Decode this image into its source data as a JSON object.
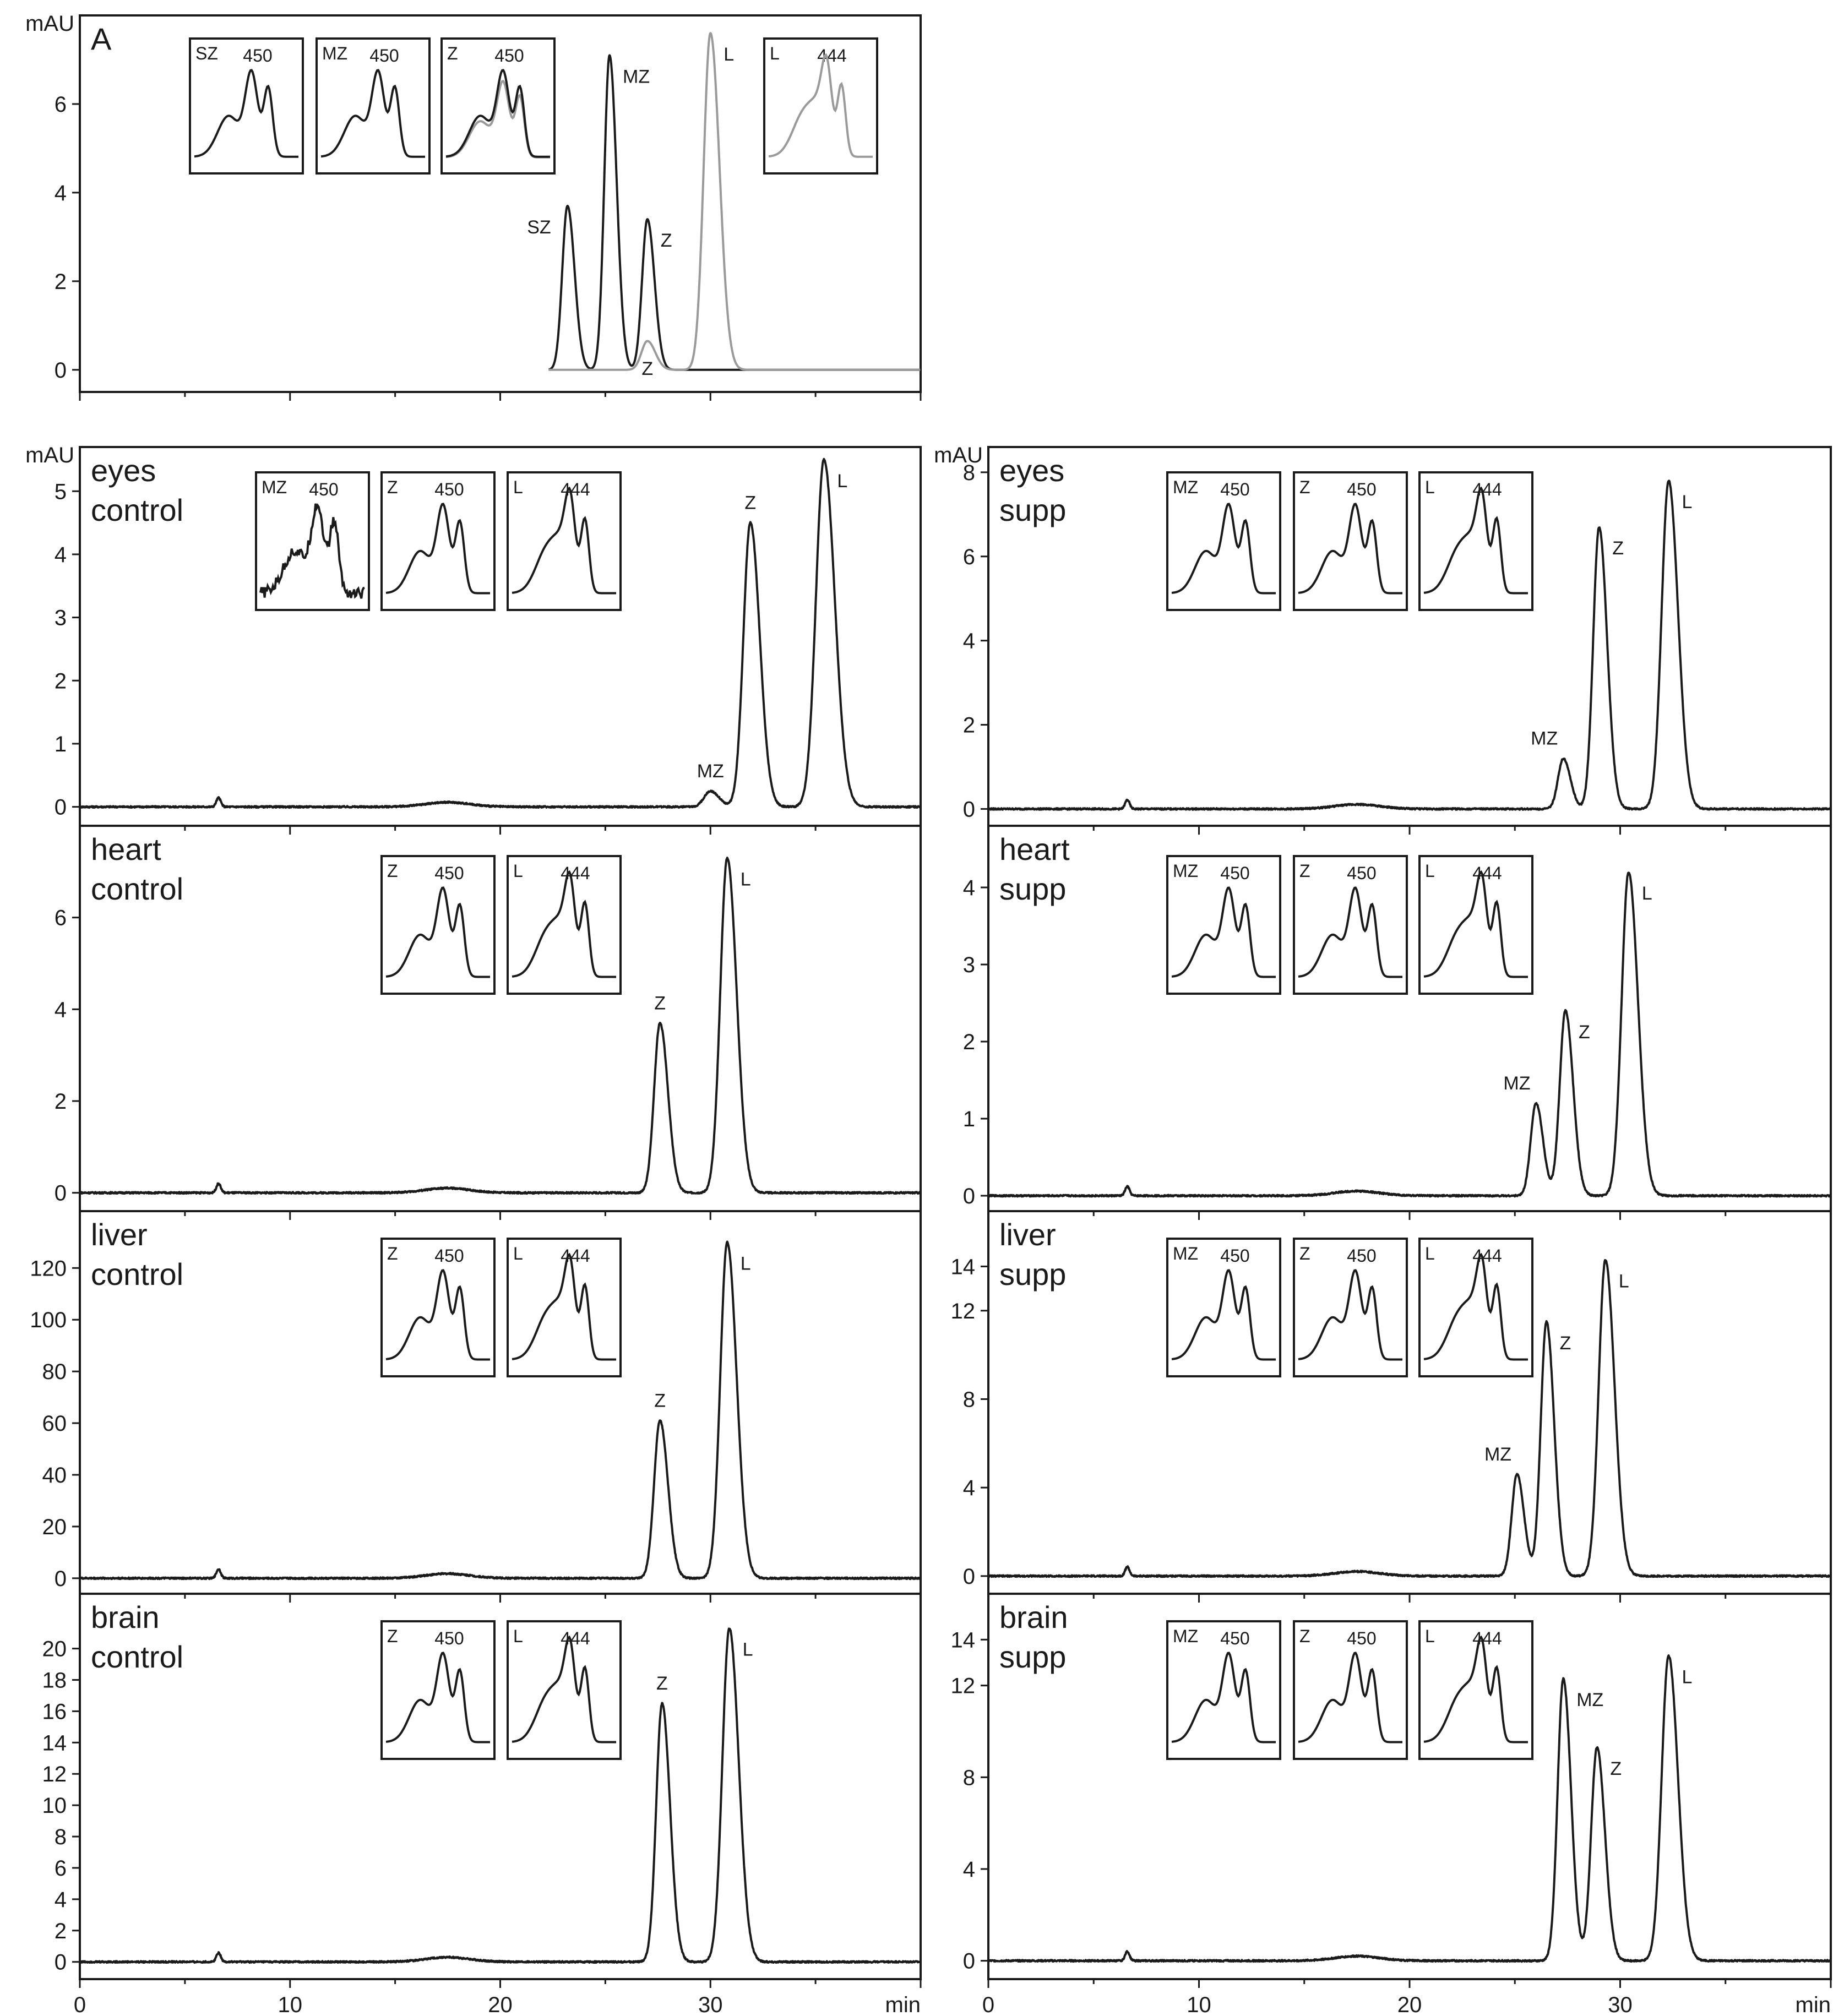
{
  "figure": {
    "x_unit": "min",
    "y_unit": "mAU",
    "panel_letter": "A"
  },
  "chart_data": [
    {
      "type": "line",
      "panel": "A",
      "label_lines": [
        "A"
      ],
      "xlim": [
        0,
        40
      ],
      "ylim": [
        -0.5,
        8.0
      ],
      "yticks": [
        0,
        2,
        4,
        6
      ],
      "ylabel": "mAU",
      "xlabel": "",
      "series": [
        {
          "name": "",
          "color": "#1a1a1a",
          "baseline": 0,
          "start": 22.3,
          "peaks": [
            {
              "x": 23.2,
              "y": 3.7,
              "w": 0.25,
              "label": "SZ"
            },
            {
              "x": 25.2,
              "y": 7.1,
              "w": 0.25,
              "label": "MZ"
            },
            {
              "x": 27.0,
              "y": 3.4,
              "w": 0.25,
              "label": "Z"
            }
          ]
        },
        {
          "name": "",
          "color": "#9a9a9a",
          "baseline": 0,
          "start": 22.3,
          "peaks": [
            {
              "x": 27.0,
              "y": 0.65,
              "w": 0.28,
              "label": "Z"
            },
            {
              "x": 30.0,
              "y": 7.6,
              "w": 0.32,
              "label": "L"
            }
          ]
        }
      ],
      "insets": [
        {
          "label": "SZ",
          "nm": "450",
          "curve": "z",
          "colors": [
            "#1a1a1a"
          ]
        },
        {
          "label": "MZ",
          "nm": "450",
          "curve": "z",
          "colors": [
            "#1a1a1a"
          ]
        },
        {
          "label": "Z",
          "nm": "450",
          "curve": "z",
          "colors": [
            "#9a9a9a",
            "#1a1a1a"
          ]
        },
        {
          "label": "L",
          "nm": "444",
          "curve": "l",
          "colors": [
            "#9a9a9a"
          ]
        }
      ]
    },
    {
      "type": "line",
      "panel": "eyes-control",
      "label_lines": [
        "eyes",
        "control"
      ],
      "xlim": [
        0,
        40
      ],
      "ylim": [
        -0.3,
        5.7
      ],
      "yticks": [
        0,
        1,
        2,
        3,
        4,
        5
      ],
      "ylabel": "mAU",
      "series": [
        {
          "name": "",
          "color": "#1a1a1a",
          "baseline": 0,
          "start": 0,
          "peaks": [
            {
              "x": 30.0,
              "y": 0.25,
              "w": 0.3,
              "label": "MZ"
            },
            {
              "x": 31.9,
              "y": 4.5,
              "w": 0.33,
              "label": "Z"
            },
            {
              "x": 35.4,
              "y": 5.5,
              "w": 0.38,
              "label": "L"
            }
          ]
        }
      ],
      "insets": [
        {
          "label": "MZ",
          "nm": "450",
          "curve": "z",
          "colors": [
            "#1a1a1a"
          ],
          "noisy": true
        },
        {
          "label": "Z",
          "nm": "450",
          "curve": "z",
          "colors": [
            "#1a1a1a"
          ]
        },
        {
          "label": "L",
          "nm": "444",
          "curve": "l",
          "colors": [
            "#1a1a1a"
          ]
        }
      ]
    },
    {
      "type": "line",
      "panel": "eyes-supp",
      "label_lines": [
        "eyes",
        "supp"
      ],
      "xlim": [
        0,
        40
      ],
      "ylim": [
        -0.4,
        8.6
      ],
      "yticks": [
        0,
        2,
        4,
        6,
        8
      ],
      "ylabel": "mAU",
      "series": [
        {
          "name": "",
          "color": "#1a1a1a",
          "baseline": 0,
          "start": 0,
          "peaks": [
            {
              "x": 27.3,
              "y": 1.2,
              "w": 0.25,
              "label": "MZ"
            },
            {
              "x": 29.0,
              "y": 6.7,
              "w": 0.28,
              "label": "Z"
            },
            {
              "x": 32.3,
              "y": 7.8,
              "w": 0.33,
              "label": "L"
            }
          ]
        }
      ],
      "insets": [
        {
          "label": "MZ",
          "nm": "450",
          "curve": "z",
          "colors": [
            "#1a1a1a"
          ]
        },
        {
          "label": "Z",
          "nm": "450",
          "curve": "z",
          "colors": [
            "#1a1a1a"
          ]
        },
        {
          "label": "L",
          "nm": "444",
          "curve": "l",
          "colors": [
            "#1a1a1a"
          ]
        }
      ]
    },
    {
      "type": "line",
      "panel": "heart-control",
      "label_lines": [
        "heart",
        "control"
      ],
      "xlim": [
        0,
        40
      ],
      "ylim": [
        -0.4,
        8.0
      ],
      "yticks": [
        0,
        2,
        4,
        6
      ],
      "ylabel": "",
      "series": [
        {
          "name": "",
          "color": "#1a1a1a",
          "baseline": 0,
          "start": 0,
          "peaks": [
            {
              "x": 27.6,
              "y": 3.7,
              "w": 0.28,
              "label": "Z"
            },
            {
              "x": 30.8,
              "y": 7.3,
              "w": 0.33,
              "label": "L"
            }
          ]
        }
      ],
      "insets": [
        {
          "label": "Z",
          "nm": "450",
          "curve": "z",
          "colors": [
            "#1a1a1a"
          ]
        },
        {
          "label": "L",
          "nm": "444",
          "curve": "l",
          "colors": [
            "#1a1a1a"
          ]
        }
      ]
    },
    {
      "type": "line",
      "panel": "heart-supp",
      "label_lines": [
        "heart",
        "supp"
      ],
      "xlim": [
        0,
        40
      ],
      "ylim": [
        -0.2,
        4.8
      ],
      "yticks": [
        0,
        1,
        2,
        3,
        4
      ],
      "ylabel": "",
      "series": [
        {
          "name": "",
          "color": "#1a1a1a",
          "baseline": 0,
          "start": 0,
          "peaks": [
            {
              "x": 26.0,
              "y": 1.2,
              "w": 0.25,
              "label": "MZ"
            },
            {
              "x": 27.4,
              "y": 2.4,
              "w": 0.27,
              "label": "Z"
            },
            {
              "x": 30.4,
              "y": 4.2,
              "w": 0.33,
              "label": "L"
            }
          ]
        }
      ],
      "insets": [
        {
          "label": "MZ",
          "nm": "450",
          "curve": "z",
          "colors": [
            "#1a1a1a"
          ]
        },
        {
          "label": "Z",
          "nm": "450",
          "curve": "z",
          "colors": [
            "#1a1a1a"
          ]
        },
        {
          "label": "L",
          "nm": "444",
          "curve": "l",
          "colors": [
            "#1a1a1a"
          ]
        }
      ]
    },
    {
      "type": "line",
      "panel": "liver-control",
      "label_lines": [
        "liver",
        "control"
      ],
      "xlim": [
        0,
        40
      ],
      "ylim": [
        -6,
        142
      ],
      "yticks": [
        0,
        20,
        40,
        60,
        80,
        100,
        120
      ],
      "ylabel": "",
      "series": [
        {
          "name": "",
          "color": "#1a1a1a",
          "baseline": 0,
          "start": 0,
          "peaks": [
            {
              "x": 27.6,
              "y": 61,
              "w": 0.28,
              "label": "Z"
            },
            {
              "x": 30.8,
              "y": 130,
              "w": 0.33,
              "label": "L"
            }
          ]
        }
      ],
      "insets": [
        {
          "label": "Z",
          "nm": "450",
          "curve": "z",
          "colors": [
            "#1a1a1a"
          ]
        },
        {
          "label": "L",
          "nm": "444",
          "curve": "l",
          "colors": [
            "#1a1a1a"
          ]
        }
      ]
    },
    {
      "type": "line",
      "panel": "liver-supp",
      "label_lines": [
        "liver",
        "supp"
      ],
      "xlim": [
        0,
        40
      ],
      "ylim": [
        -0.8,
        16.5
      ],
      "yticks": [
        0,
        4,
        8,
        12,
        14
      ],
      "ylabel": "",
      "series": [
        {
          "name": "",
          "color": "#1a1a1a",
          "baseline": 0,
          "start": 0,
          "peaks": [
            {
              "x": 25.1,
              "y": 4.6,
              "w": 0.25,
              "label": "MZ"
            },
            {
              "x": 26.5,
              "y": 11.5,
              "w": 0.27,
              "label": "Z"
            },
            {
              "x": 29.3,
              "y": 14.3,
              "w": 0.32,
              "label": "L"
            }
          ]
        }
      ],
      "insets": [
        {
          "label": "MZ",
          "nm": "450",
          "curve": "z",
          "colors": [
            "#1a1a1a"
          ]
        },
        {
          "label": "Z",
          "nm": "450",
          "curve": "z",
          "colors": [
            "#1a1a1a"
          ]
        },
        {
          "label": "L",
          "nm": "444",
          "curve": "l",
          "colors": [
            "#1a1a1a"
          ]
        }
      ]
    },
    {
      "type": "line",
      "panel": "brain-control",
      "label_lines": [
        "brain",
        "control"
      ],
      "xlim": [
        0,
        40
      ],
      "ylim": [
        -1.1,
        23.5
      ],
      "yticks": [
        0,
        2,
        4,
        6,
        8,
        10,
        12,
        14,
        16,
        18,
        20
      ],
      "ylabel": "",
      "xlabel": "min",
      "xticks": [
        0,
        10,
        20,
        30
      ],
      "series": [
        {
          "name": "",
          "color": "#1a1a1a",
          "baseline": 0,
          "start": 0,
          "peaks": [
            {
              "x": 27.7,
              "y": 16.5,
              "w": 0.28,
              "label": "Z"
            },
            {
              "x": 30.9,
              "y": 21.3,
              "w": 0.33,
              "label": "L"
            }
          ]
        }
      ],
      "insets": [
        {
          "label": "Z",
          "nm": "450",
          "curve": "z",
          "colors": [
            "#1a1a1a"
          ]
        },
        {
          "label": "L",
          "nm": "444",
          "curve": "l",
          "colors": [
            "#1a1a1a"
          ]
        }
      ]
    },
    {
      "type": "line",
      "panel": "brain-supp",
      "label_lines": [
        "brain",
        "supp"
      ],
      "xlim": [
        0,
        40
      ],
      "ylim": [
        -0.8,
        16.0
      ],
      "yticks": [
        0,
        4,
        8,
        12,
        14
      ],
      "ylabel": "",
      "xlabel": "min",
      "xticks": [
        0,
        10,
        20,
        30
      ],
      "series": [
        {
          "name": "",
          "color": "#1a1a1a",
          "baseline": 0,
          "start": 0,
          "peaks": [
            {
              "x": 27.3,
              "y": 12.3,
              "w": 0.27,
              "label": "MZ"
            },
            {
              "x": 28.9,
              "y": 9.3,
              "w": 0.28,
              "label": "Z"
            },
            {
              "x": 32.3,
              "y": 13.3,
              "w": 0.33,
              "label": "L"
            }
          ]
        }
      ],
      "insets": [
        {
          "label": "MZ",
          "nm": "450",
          "curve": "z",
          "colors": [
            "#1a1a1a"
          ]
        },
        {
          "label": "Z",
          "nm": "450",
          "curve": "z",
          "colors": [
            "#1a1a1a"
          ]
        },
        {
          "label": "L",
          "nm": "444",
          "curve": "l",
          "colors": [
            "#1a1a1a"
          ]
        }
      ]
    }
  ]
}
